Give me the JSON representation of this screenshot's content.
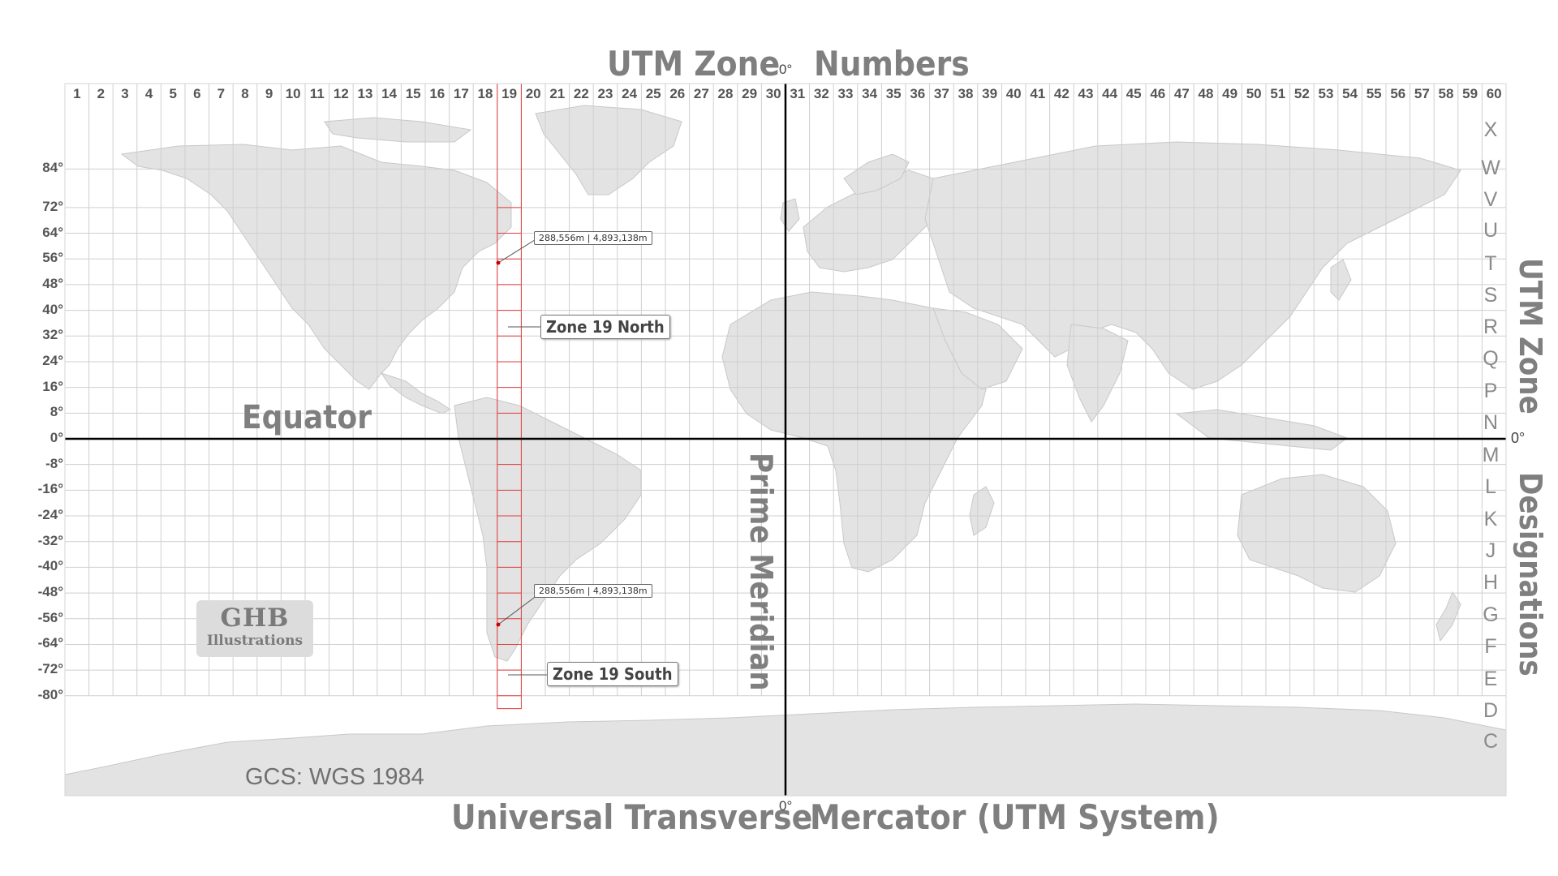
{
  "title_top": {
    "left": "UTM Zone",
    "right": "Numbers",
    "meridian_degree": "0°"
  },
  "title_bottom": {
    "left": "Universal Transverse",
    "right": "Mercator (UTM System)",
    "meridian_degree": "0°"
  },
  "zone_numbers": [
    "1",
    "2",
    "3",
    "4",
    "5",
    "6",
    "7",
    "8",
    "9",
    "10",
    "11",
    "12",
    "13",
    "14",
    "15",
    "16",
    "17",
    "18",
    "19",
    "20",
    "21",
    "22",
    "23",
    "24",
    "25",
    "26",
    "27",
    "28",
    "29",
    "30",
    "31",
    "32",
    "33",
    "34",
    "35",
    "36",
    "37",
    "38",
    "39",
    "40",
    "41",
    "42",
    "43",
    "44",
    "45",
    "46",
    "47",
    "48",
    "49",
    "50",
    "51",
    "52",
    "53",
    "54",
    "55",
    "56",
    "57",
    "58",
    "59",
    "60"
  ],
  "latitude_labels": [
    "84°",
    "72°",
    "64°",
    "56°",
    "48°",
    "40°",
    "32°",
    "24°",
    "16°",
    "8°",
    "0°",
    "-8°",
    "-16°",
    "-24°",
    "-32°",
    "-40°",
    "-48°",
    "-56°",
    "-64°",
    "-72°",
    "-80°"
  ],
  "band_letters": [
    "X",
    "W",
    "V",
    "U",
    "T",
    "S",
    "R",
    "Q",
    "P",
    "N",
    "M",
    "L",
    "K",
    "J",
    "H",
    "G",
    "F",
    "E",
    "D",
    "C"
  ],
  "labels": {
    "equator": "Equator",
    "prime_meridian": "Prime Meridian",
    "right_equator_degree": "0°",
    "right_title_1": "UTM Zone",
    "right_title_2": "Designations",
    "zone_north": "Zone 19 North",
    "zone_south": "Zone 19 South",
    "coord_north": "288,556m | 4,893,138m",
    "coord_south": "288,556m | 4,893,138m",
    "gcs": "GCS: WGS 1984",
    "ghb_line1": "GHB",
    "ghb_line2": "Illustrations"
  },
  "highlight_zone": 19,
  "colors": {
    "land": "#e3e3e3",
    "grid": "#cfcfcf",
    "highlight": "#e23b3b",
    "axis": "#000000",
    "title": "#7f7f7f"
  }
}
